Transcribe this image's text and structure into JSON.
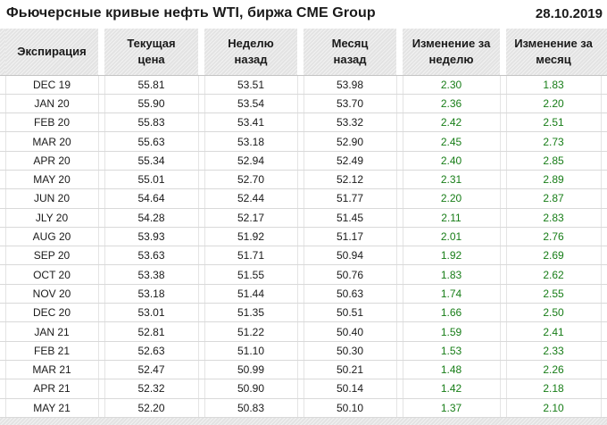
{
  "chart_data": {
    "type": "table",
    "title": "Фьючерсные кривые нефть WTI, биржа CME Group",
    "date": "28.10.2019",
    "columns": [
      "Экспирация",
      "Текущая цена",
      "Неделю назад",
      "Месяц назад",
      "Изменение за неделю",
      "Изменение за месяц"
    ],
    "headers_display": [
      "Экспирация",
      "Текущая\nцена",
      "Неделю\nназад",
      "Месяц\nназад",
      "Изменение за\nнеделю",
      "Изменение за\nмесяц"
    ],
    "rows": [
      [
        "DEC 19",
        "55.81",
        "53.51",
        "53.98",
        "2.30",
        "1.83"
      ],
      [
        "JAN 20",
        "55.90",
        "53.54",
        "53.70",
        "2.36",
        "2.20"
      ],
      [
        "FEB 20",
        "55.83",
        "53.41",
        "53.32",
        "2.42",
        "2.51"
      ],
      [
        "MAR 20",
        "55.63",
        "53.18",
        "52.90",
        "2.45",
        "2.73"
      ],
      [
        "APR 20",
        "55.34",
        "52.94",
        "52.49",
        "2.40",
        "2.85"
      ],
      [
        "MAY 20",
        "55.01",
        "52.70",
        "52.12",
        "2.31",
        "2.89"
      ],
      [
        "JUN 20",
        "54.64",
        "52.44",
        "51.77",
        "2.20",
        "2.87"
      ],
      [
        "JLY 20",
        "54.28",
        "52.17",
        "51.45",
        "2.11",
        "2.83"
      ],
      [
        "AUG 20",
        "53.93",
        "51.92",
        "51.17",
        "2.01",
        "2.76"
      ],
      [
        "SEP 20",
        "53.63",
        "51.71",
        "50.94",
        "1.92",
        "2.69"
      ],
      [
        "OCT 20",
        "53.38",
        "51.55",
        "50.76",
        "1.83",
        "2.62"
      ],
      [
        "NOV 20",
        "53.18",
        "51.44",
        "50.63",
        "1.74",
        "2.55"
      ],
      [
        "DEC 20",
        "53.01",
        "51.35",
        "50.51",
        "1.66",
        "2.50"
      ],
      [
        "JAN 21",
        "52.81",
        "51.22",
        "50.40",
        "1.59",
        "2.41"
      ],
      [
        "FEB 21",
        "52.63",
        "51.10",
        "50.30",
        "1.53",
        "2.33"
      ],
      [
        "MAR 21",
        "52.47",
        "50.99",
        "50.21",
        "1.48",
        "2.26"
      ],
      [
        "APR 21",
        "52.32",
        "50.90",
        "50.14",
        "1.42",
        "2.18"
      ],
      [
        "MAY 21",
        "52.20",
        "50.83",
        "50.10",
        "1.37",
        "2.10"
      ]
    ],
    "legend_position": "none",
    "grid": true
  },
  "colors": {
    "positive_change": "#177d17",
    "text": "#1a1a1a",
    "header_bg": "#e3e3e3",
    "row_border": "#d9d9d9",
    "column_border": "#e4e4e4"
  }
}
